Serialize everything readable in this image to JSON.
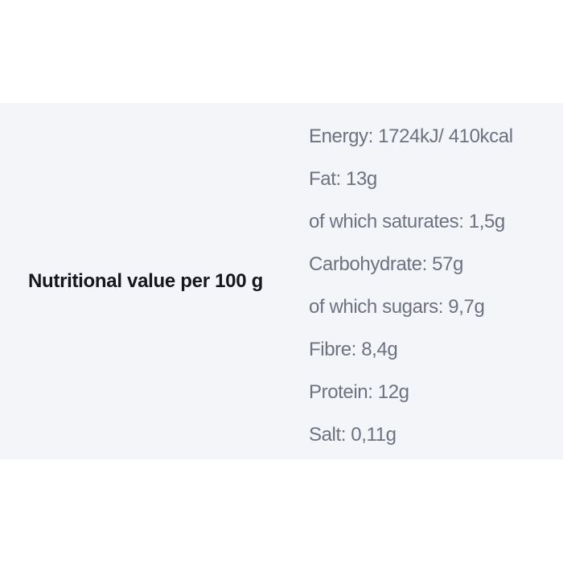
{
  "nutrition_section": {
    "title": "Nutritional value per 100 g",
    "rows": [
      {
        "text": "Energy: 1724kJ/ 410kcal"
      },
      {
        "text": "Fat: 13g"
      },
      {
        "text": "of which saturates: 1,5g"
      },
      {
        "text": "Carbohydrate: 57g"
      },
      {
        "text": "of which sugars: 9,7g"
      },
      {
        "text": "Fibre: 8,4g"
      },
      {
        "text": "Protein: 12g"
      },
      {
        "text": "Salt: 0,11g"
      }
    ],
    "colors": {
      "band_background": "#f4f5f9",
      "title_text": "#15171c",
      "row_text": "#6e7280",
      "page_background": "#ffffff"
    }
  }
}
